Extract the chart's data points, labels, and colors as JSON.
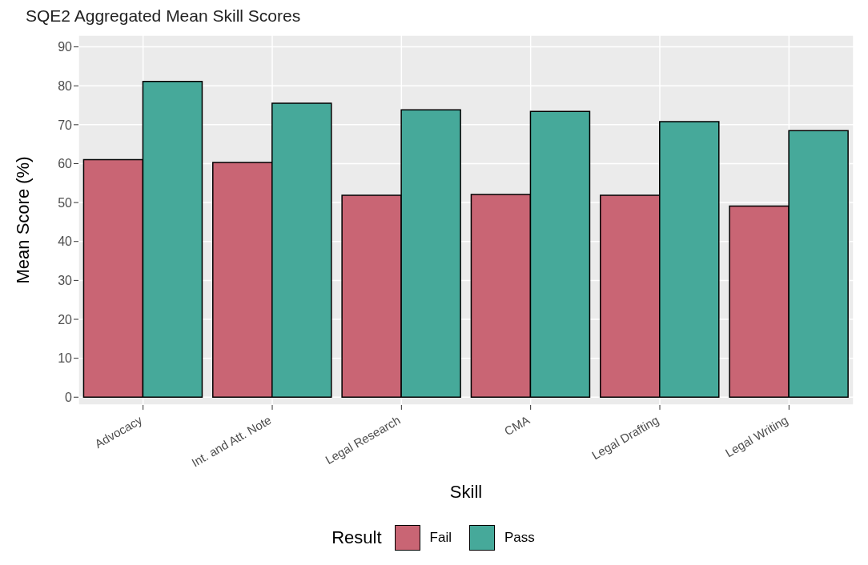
{
  "chart_data": {
    "type": "bar",
    "title": "SQE2 Aggregated Mean Skill Scores",
    "xlabel": "Skill",
    "ylabel": "Mean Score (%)",
    "legend_title": "Result",
    "categories": [
      "Advocacy",
      "Int. and Att. Note",
      "Legal Research",
      "CMA",
      "Legal Drafting",
      "Legal Writing"
    ],
    "series": [
      {
        "name": "Fail",
        "color": "#c96574",
        "values": [
          61.0,
          60.3,
          51.9,
          52.1,
          51.9,
          49.1
        ]
      },
      {
        "name": "Pass",
        "color": "#46a99a",
        "values": [
          81.1,
          75.5,
          73.8,
          73.4,
          70.8,
          68.5
        ]
      }
    ],
    "ylim": [
      -2,
      93
    ],
    "yticks": [
      0,
      10,
      20,
      30,
      40,
      50,
      60,
      70,
      80,
      90
    ],
    "grid": true,
    "legend": "bottom"
  }
}
